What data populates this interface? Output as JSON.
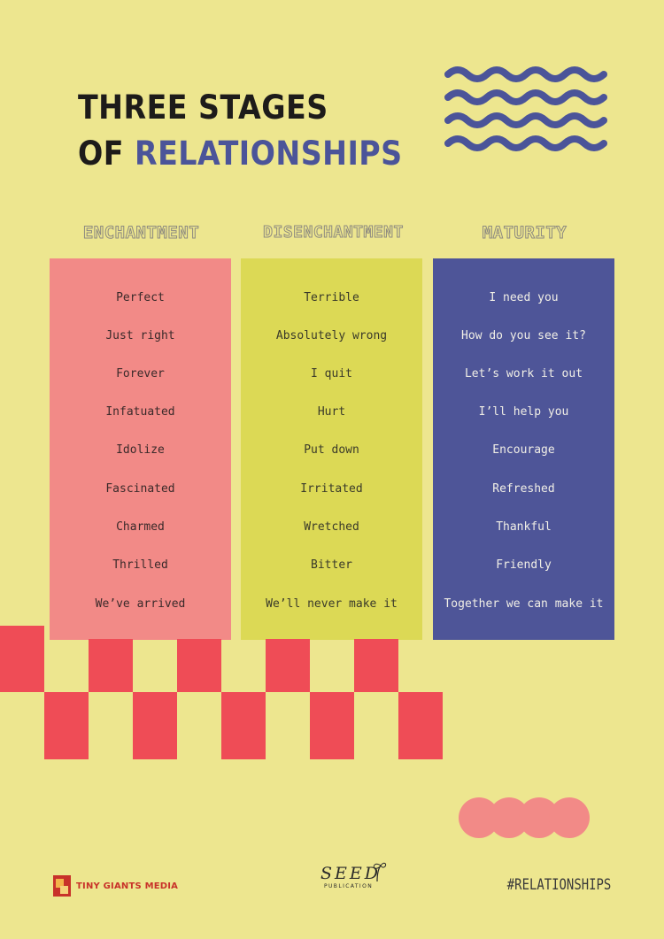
{
  "title": {
    "line1": "THREE STAGES",
    "line2_prefix": "OF ",
    "line2_accent": "RELATIONSHIPS"
  },
  "colors": {
    "background": "#ede68f",
    "enchantment": "#f28a87",
    "disenchantment": "#dcd955",
    "maturity": "#4e5598",
    "checker": "#ef4c56",
    "accent": "#4b5499"
  },
  "columns": [
    {
      "heading": "ENCHANTMENT",
      "items": [
        "Perfect",
        "Just right",
        "Forever",
        "Infatuated",
        "Idolize",
        "Fascinated",
        "Charmed",
        "Thrilled",
        "We’ve arrived"
      ]
    },
    {
      "heading": "DISENCHANTMENT",
      "items": [
        "Terrible",
        "Absolutely wrong",
        "I quit",
        "Hurt",
        "Put down",
        "Irritated",
        "Wretched",
        "Bitter",
        "We’ll never make it"
      ]
    },
    {
      "heading": "MATURITY",
      "items": [
        "I need you",
        "How do you see it?",
        "Let’s work it out",
        "I’ll help you",
        "Encourage",
        "Refreshed",
        "Thankful",
        "Friendly",
        "Together we can make it"
      ]
    }
  ],
  "footer": {
    "brand_left": "TINY GIANTS MEDIA",
    "brand_center": "SEED",
    "brand_center_sub": "PUBLICATION",
    "hashtag": "#RELATIONSHIPS"
  },
  "icons": {
    "waves": "wave-lines-icon",
    "tiny_giants": "tiny-giants-logo-icon",
    "seed": "seed-sprout-icon"
  }
}
